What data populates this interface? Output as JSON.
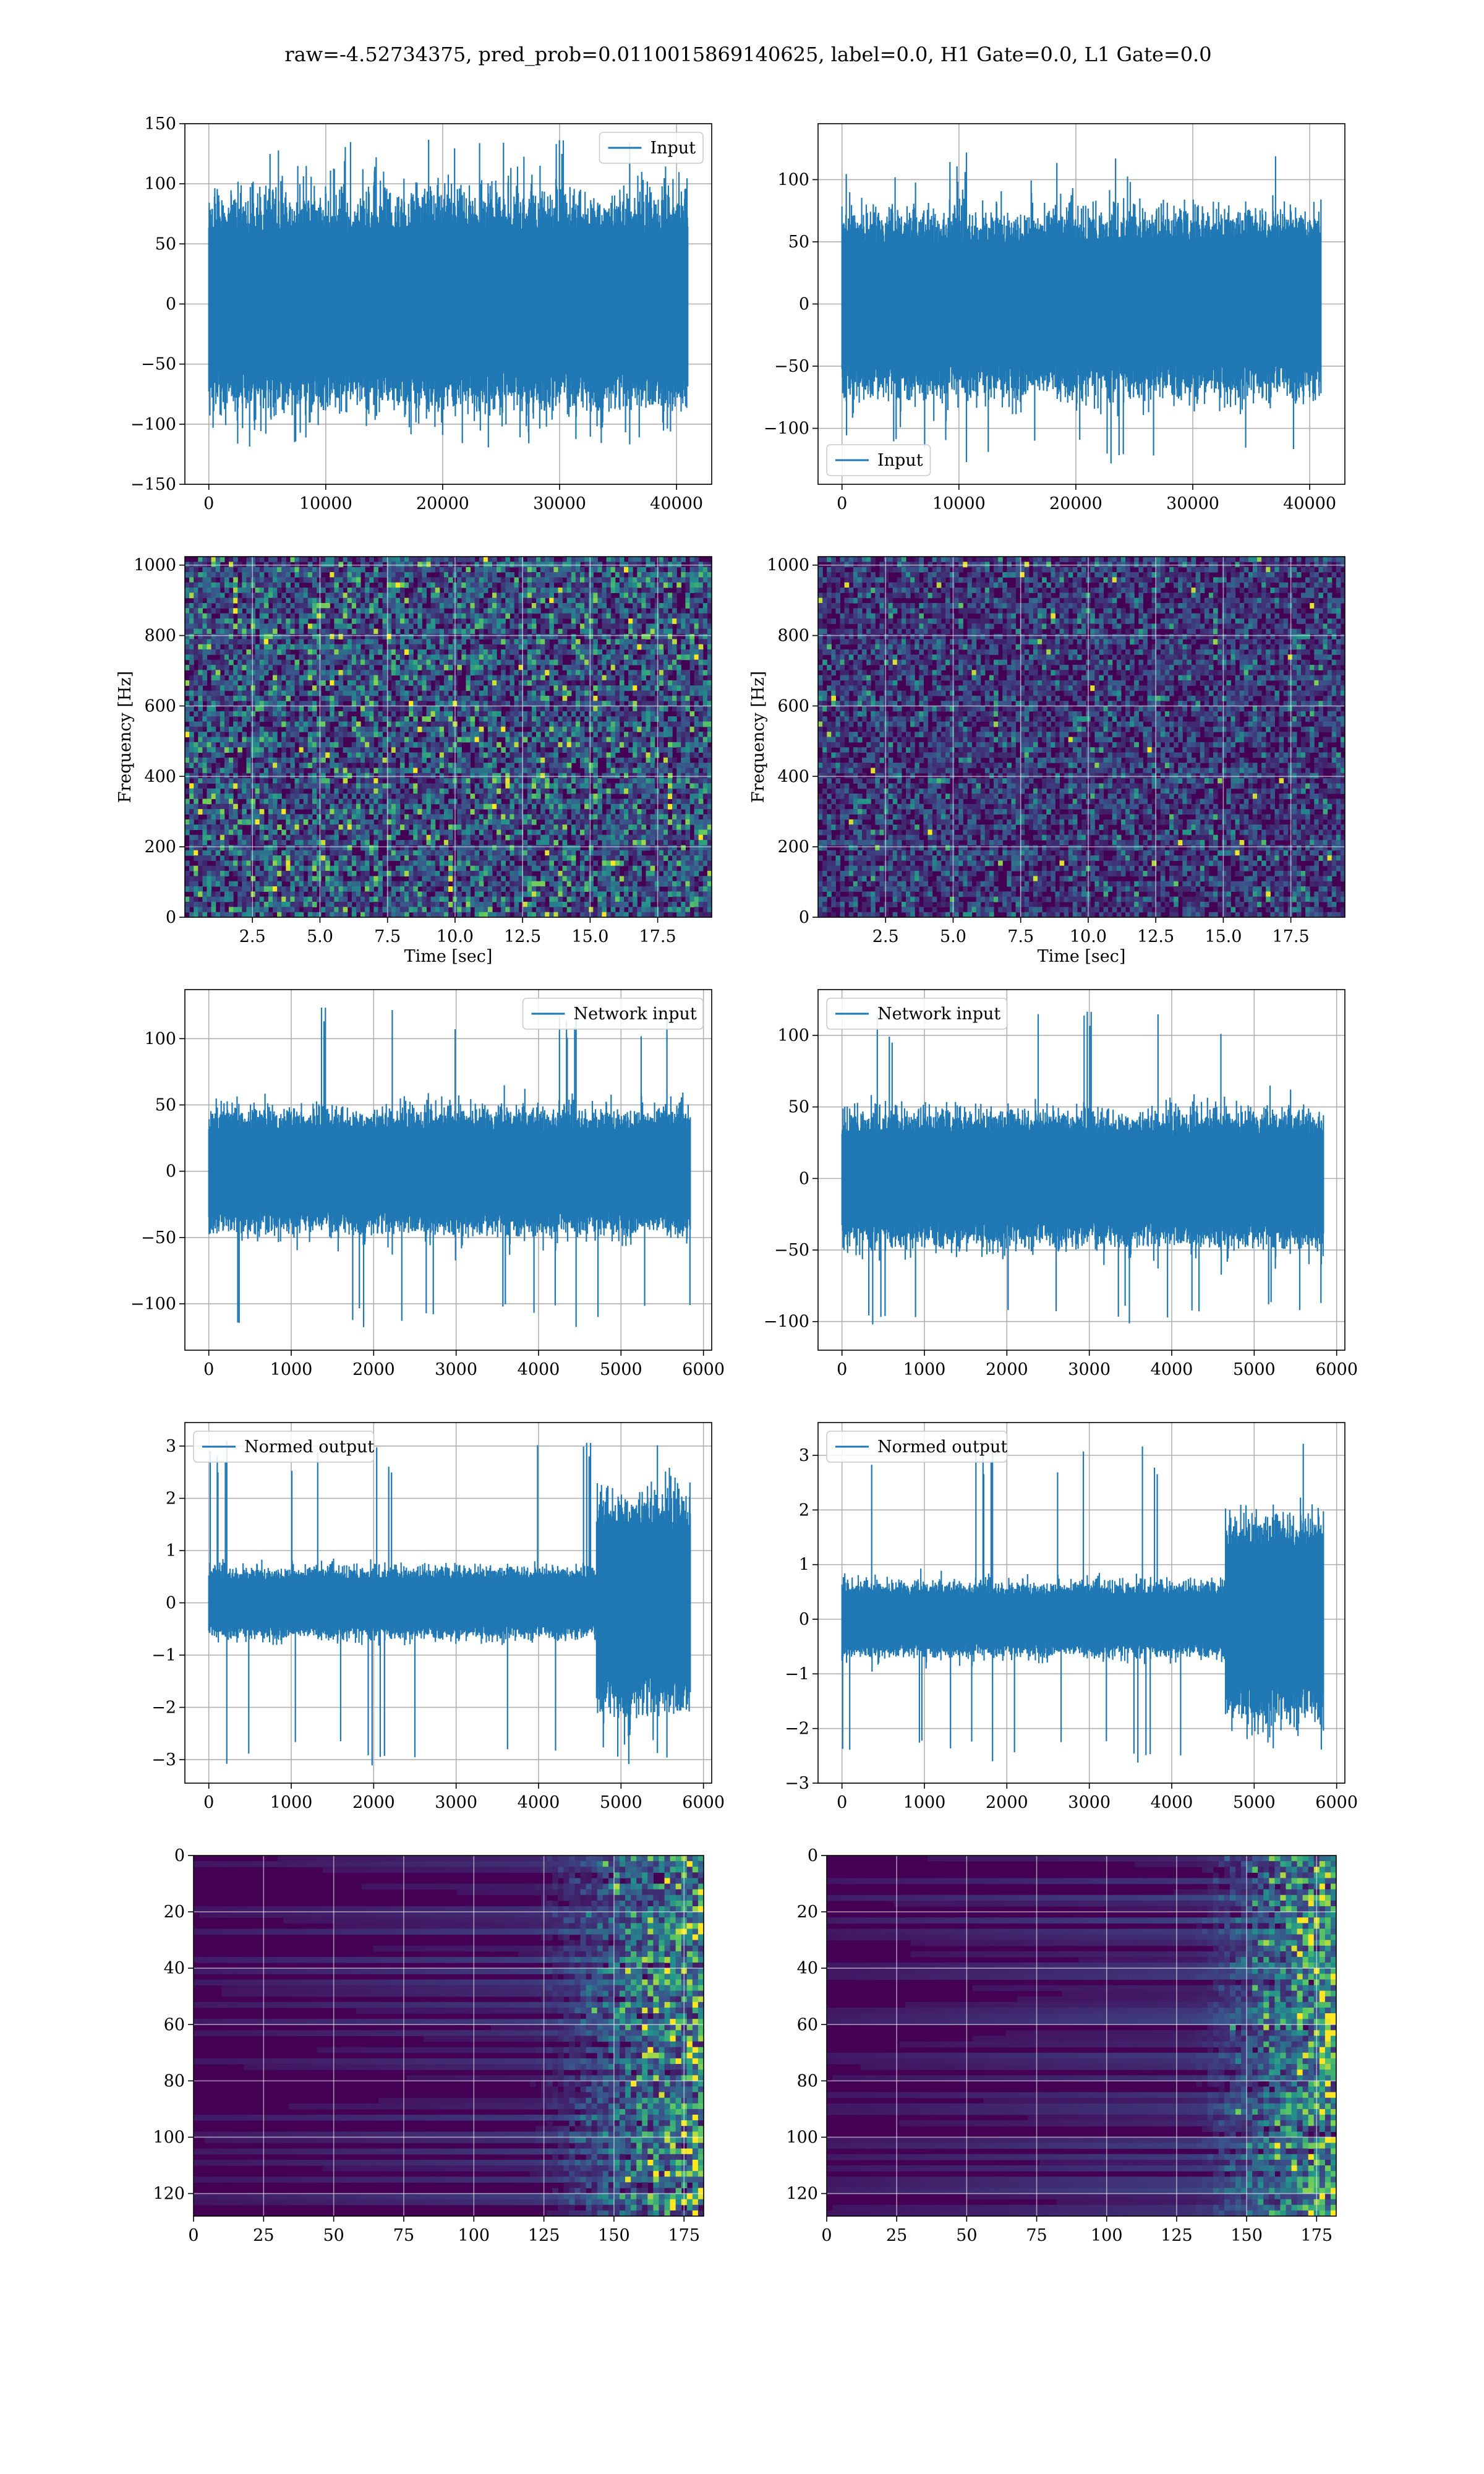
{
  "figure": {
    "suptitle": "raw=-4.52734375, pred_prob=0.0110015869140625, label=0.0, H1 Gate=0.0, L1 Gate=0.0"
  },
  "colors": {
    "line": "#1f77b4",
    "grid": "#b0b0b0",
    "axis": "#000000",
    "viridis_dark": "#440154",
    "viridis_mid": "#3b528b",
    "viridis_teal": "#21918c",
    "viridis_green": "#5ec962",
    "viridis_yellow": "#fde725"
  },
  "chart_data": [
    {
      "id": "r1c1",
      "type": "line",
      "legend": [
        "Input"
      ],
      "legend_loc": "upper-right",
      "xlim": [
        -2048,
        43008
      ],
      "ylim": [
        -150,
        150
      ],
      "xticks": [
        0,
        10000,
        20000,
        30000,
        40000
      ],
      "xticklabels": [
        "0",
        "10000",
        "20000",
        "30000",
        "40000"
      ],
      "yticks": [
        -150,
        -100,
        -50,
        0,
        50,
        100,
        150
      ],
      "yticklabels": [
        "−150",
        "−100",
        "−50",
        "0",
        "50",
        "100",
        "150"
      ],
      "series": [
        {
          "x_range": [
            0,
            40960
          ],
          "core_band": [
            -65,
            68
          ],
          "peak_max": 138,
          "peak_min": -120
        }
      ],
      "xlabel": "",
      "ylabel": "",
      "grid": true
    },
    {
      "id": "r1c2",
      "type": "line",
      "legend": [
        "Input"
      ],
      "legend_loc": "lower-left",
      "xlim": [
        -2048,
        43008
      ],
      "ylim": [
        -145,
        145
      ],
      "xticks": [
        0,
        10000,
        20000,
        30000,
        40000
      ],
      "xticklabels": [
        "0",
        "10000",
        "20000",
        "30000",
        "40000"
      ],
      "yticks": [
        -100,
        -50,
        0,
        50,
        100
      ],
      "yticklabels": [
        "−100",
        "−50",
        "0",
        "50",
        "100"
      ],
      "series": [
        {
          "x_range": [
            0,
            40960
          ],
          "core_band": [
            -55,
            55
          ],
          "peak_max": 122,
          "peak_min": -132
        }
      ],
      "xlabel": "",
      "ylabel": "",
      "grid": true
    },
    {
      "id": "r2c1",
      "type": "heatmap",
      "colormap": "viridis",
      "xlim": [
        0,
        19.5
      ],
      "ylim": [
        0,
        1024
      ],
      "xticks": [
        2.5,
        5.0,
        7.5,
        10.0,
        12.5,
        15.0,
        17.5
      ],
      "xticklabels": [
        "2.5",
        "5.0",
        "7.5",
        "10.0",
        "12.5",
        "15.0",
        "17.5"
      ],
      "yticks": [
        0,
        200,
        400,
        600,
        800,
        1000
      ],
      "yticklabels": [
        "0",
        "200",
        "400",
        "600",
        "800",
        "1000"
      ],
      "xlabel": "Time [sec]",
      "ylabel": "Frequency [Hz]",
      "grid": true
    },
    {
      "id": "r2c2",
      "type": "heatmap",
      "colormap": "viridis",
      "xlim": [
        0,
        19.5
      ],
      "ylim": [
        0,
        1024
      ],
      "xticks": [
        2.5,
        5.0,
        7.5,
        10.0,
        12.5,
        15.0,
        17.5
      ],
      "xticklabels": [
        "2.5",
        "5.0",
        "7.5",
        "10.0",
        "12.5",
        "15.0",
        "17.5"
      ],
      "yticks": [
        0,
        200,
        400,
        600,
        800,
        1000
      ],
      "yticklabels": [
        "0",
        "200",
        "400",
        "600",
        "800",
        "1000"
      ],
      "xlabel": "Time [sec]",
      "ylabel": "Frequency [Hz]",
      "grid": true
    },
    {
      "id": "r3c1",
      "type": "line",
      "legend": [
        "Network input"
      ],
      "legend_loc": "upper-right",
      "xlim": [
        -290,
        6100
      ],
      "ylim": [
        -135,
        137
      ],
      "xticks": [
        0,
        1000,
        2000,
        3000,
        4000,
        5000,
        6000
      ],
      "xticklabels": [
        "0",
        "1000",
        "2000",
        "3000",
        "4000",
        "5000",
        "6000"
      ],
      "yticks": [
        -100,
        -50,
        0,
        50,
        100
      ],
      "yticklabels": [
        "−100",
        "−50",
        "0",
        "50",
        "100"
      ],
      "series": [
        {
          "x_range": [
            0,
            5840
          ],
          "core_band": [
            -35,
            35
          ],
          "peak_max": 125,
          "peak_min": -122
        }
      ],
      "xlabel": "",
      "ylabel": "",
      "grid": true
    },
    {
      "id": "r3c2",
      "type": "line",
      "legend": [
        "Network input"
      ],
      "legend_loc": "upper-left",
      "xlim": [
        -290,
        6100
      ],
      "ylim": [
        -120,
        132
      ],
      "xticks": [
        0,
        1000,
        2000,
        3000,
        4000,
        5000,
        6000
      ],
      "xticklabels": [
        "0",
        "1000",
        "2000",
        "3000",
        "4000",
        "5000",
        "6000"
      ],
      "yticks": [
        -100,
        -50,
        0,
        50,
        100
      ],
      "yticklabels": [
        "−100",
        "−50",
        "0",
        "50",
        "100"
      ],
      "series": [
        {
          "x_range": [
            0,
            5840
          ],
          "core_band": [
            -35,
            35
          ],
          "peak_max": 118,
          "peak_min": -105
        }
      ],
      "xlabel": "",
      "ylabel": "",
      "grid": true
    },
    {
      "id": "r4c1",
      "type": "line",
      "legend": [
        "Normed output"
      ],
      "legend_loc": "upper-left",
      "xlim": [
        -290,
        6100
      ],
      "ylim": [
        -3.45,
        3.45
      ],
      "xticks": [
        0,
        1000,
        2000,
        3000,
        4000,
        5000,
        6000
      ],
      "xticklabels": [
        "0",
        "1000",
        "2000",
        "3000",
        "4000",
        "5000",
        "6000"
      ],
      "yticks": [
        -3,
        -2,
        -1,
        0,
        1,
        2,
        3
      ],
      "yticklabels": [
        "−3",
        "−2",
        "−1",
        "0",
        "1",
        "2",
        "3"
      ],
      "series": [
        {
          "x_range": [
            0,
            5840
          ],
          "core_band": [
            -0.5,
            0.5
          ],
          "burst_start": 4700,
          "burst_band": [
            -1.6,
            1.6
          ],
          "peak_max": 3.1,
          "peak_min": -3.2
        }
      ],
      "xlabel": "",
      "ylabel": "",
      "grid": true
    },
    {
      "id": "r4c2",
      "type": "line",
      "legend": [
        "Normed output"
      ],
      "legend_loc": "upper-left",
      "xlim": [
        -290,
        6100
      ],
      "ylim": [
        -3.0,
        3.6
      ],
      "xticks": [
        0,
        1000,
        2000,
        3000,
        4000,
        5000,
        6000
      ],
      "xticklabels": [
        "0",
        "1000",
        "2000",
        "3000",
        "4000",
        "5000",
        "6000"
      ],
      "yticks": [
        -3,
        -2,
        -1,
        0,
        1,
        2,
        3
      ],
      "yticklabels": [
        "−3",
        "−2",
        "−1",
        "0",
        "1",
        "2",
        "3"
      ],
      "series": [
        {
          "x_range": [
            0,
            5840
          ],
          "core_band": [
            -0.5,
            0.5
          ],
          "burst_start": 4650,
          "burst_band": [
            -1.4,
            1.4
          ],
          "peak_max": 3.3,
          "peak_min": -2.7
        }
      ],
      "xlabel": "",
      "ylabel": "",
      "grid": true
    },
    {
      "id": "r5c1",
      "type": "heatmap",
      "colormap": "viridis",
      "xlim": [
        0,
        182
      ],
      "ylim": [
        128,
        0
      ],
      "xticks": [
        0,
        25,
        50,
        75,
        100,
        125,
        150,
        175
      ],
      "xticklabels": [
        "0",
        "25",
        "50",
        "75",
        "100",
        "125",
        "150",
        "175"
      ],
      "yticks": [
        0,
        20,
        40,
        60,
        80,
        100,
        120
      ],
      "yticklabels": [
        "0",
        "20",
        "40",
        "60",
        "80",
        "100",
        "120"
      ],
      "xlabel": "",
      "ylabel": "",
      "grid": true
    },
    {
      "id": "r5c2",
      "type": "heatmap",
      "colormap": "viridis",
      "xlim": [
        0,
        182
      ],
      "ylim": [
        128,
        0
      ],
      "xticks": [
        0,
        25,
        50,
        75,
        100,
        125,
        150,
        175
      ],
      "xticklabels": [
        "0",
        "25",
        "50",
        "75",
        "100",
        "125",
        "150",
        "175"
      ],
      "yticks": [
        0,
        20,
        40,
        60,
        80,
        100,
        120
      ],
      "yticklabels": [
        "0",
        "20",
        "40",
        "60",
        "80",
        "100",
        "120"
      ],
      "xlabel": "",
      "ylabel": "",
      "grid": true
    }
  ]
}
